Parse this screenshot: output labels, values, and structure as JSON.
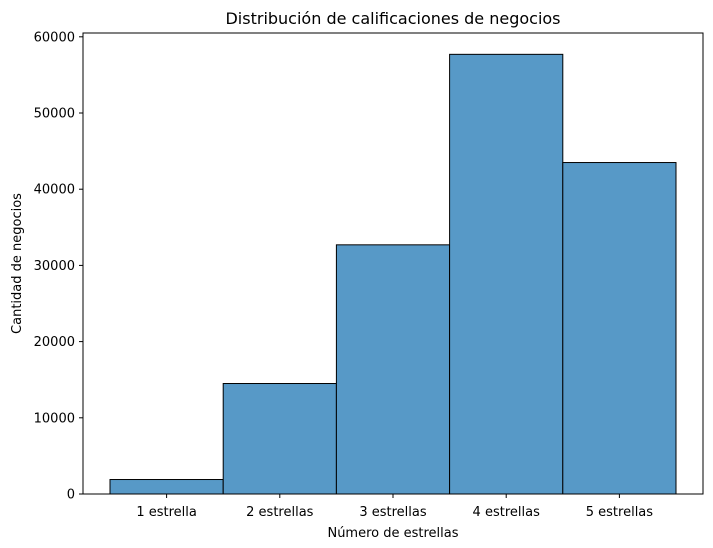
{
  "chart_data": {
    "type": "bar",
    "title": "Distribución de calificaciones de negocios",
    "xlabel": "Número de estrellas",
    "ylabel": "Cantidad de negocios",
    "categories": [
      "1 estrella",
      "2 estrellas",
      "3 estrellas",
      "4 estrellas",
      "5 estrellas"
    ],
    "values": [
      1900,
      14500,
      32700,
      57700,
      43500
    ],
    "ylim": [
      0,
      60500
    ],
    "yticks": [
      0,
      10000,
      20000,
      30000,
      40000,
      50000,
      60000
    ],
    "grid": false,
    "legend": "none",
    "colors": {
      "bar": "#5799c7",
      "edge": "#000000"
    }
  }
}
